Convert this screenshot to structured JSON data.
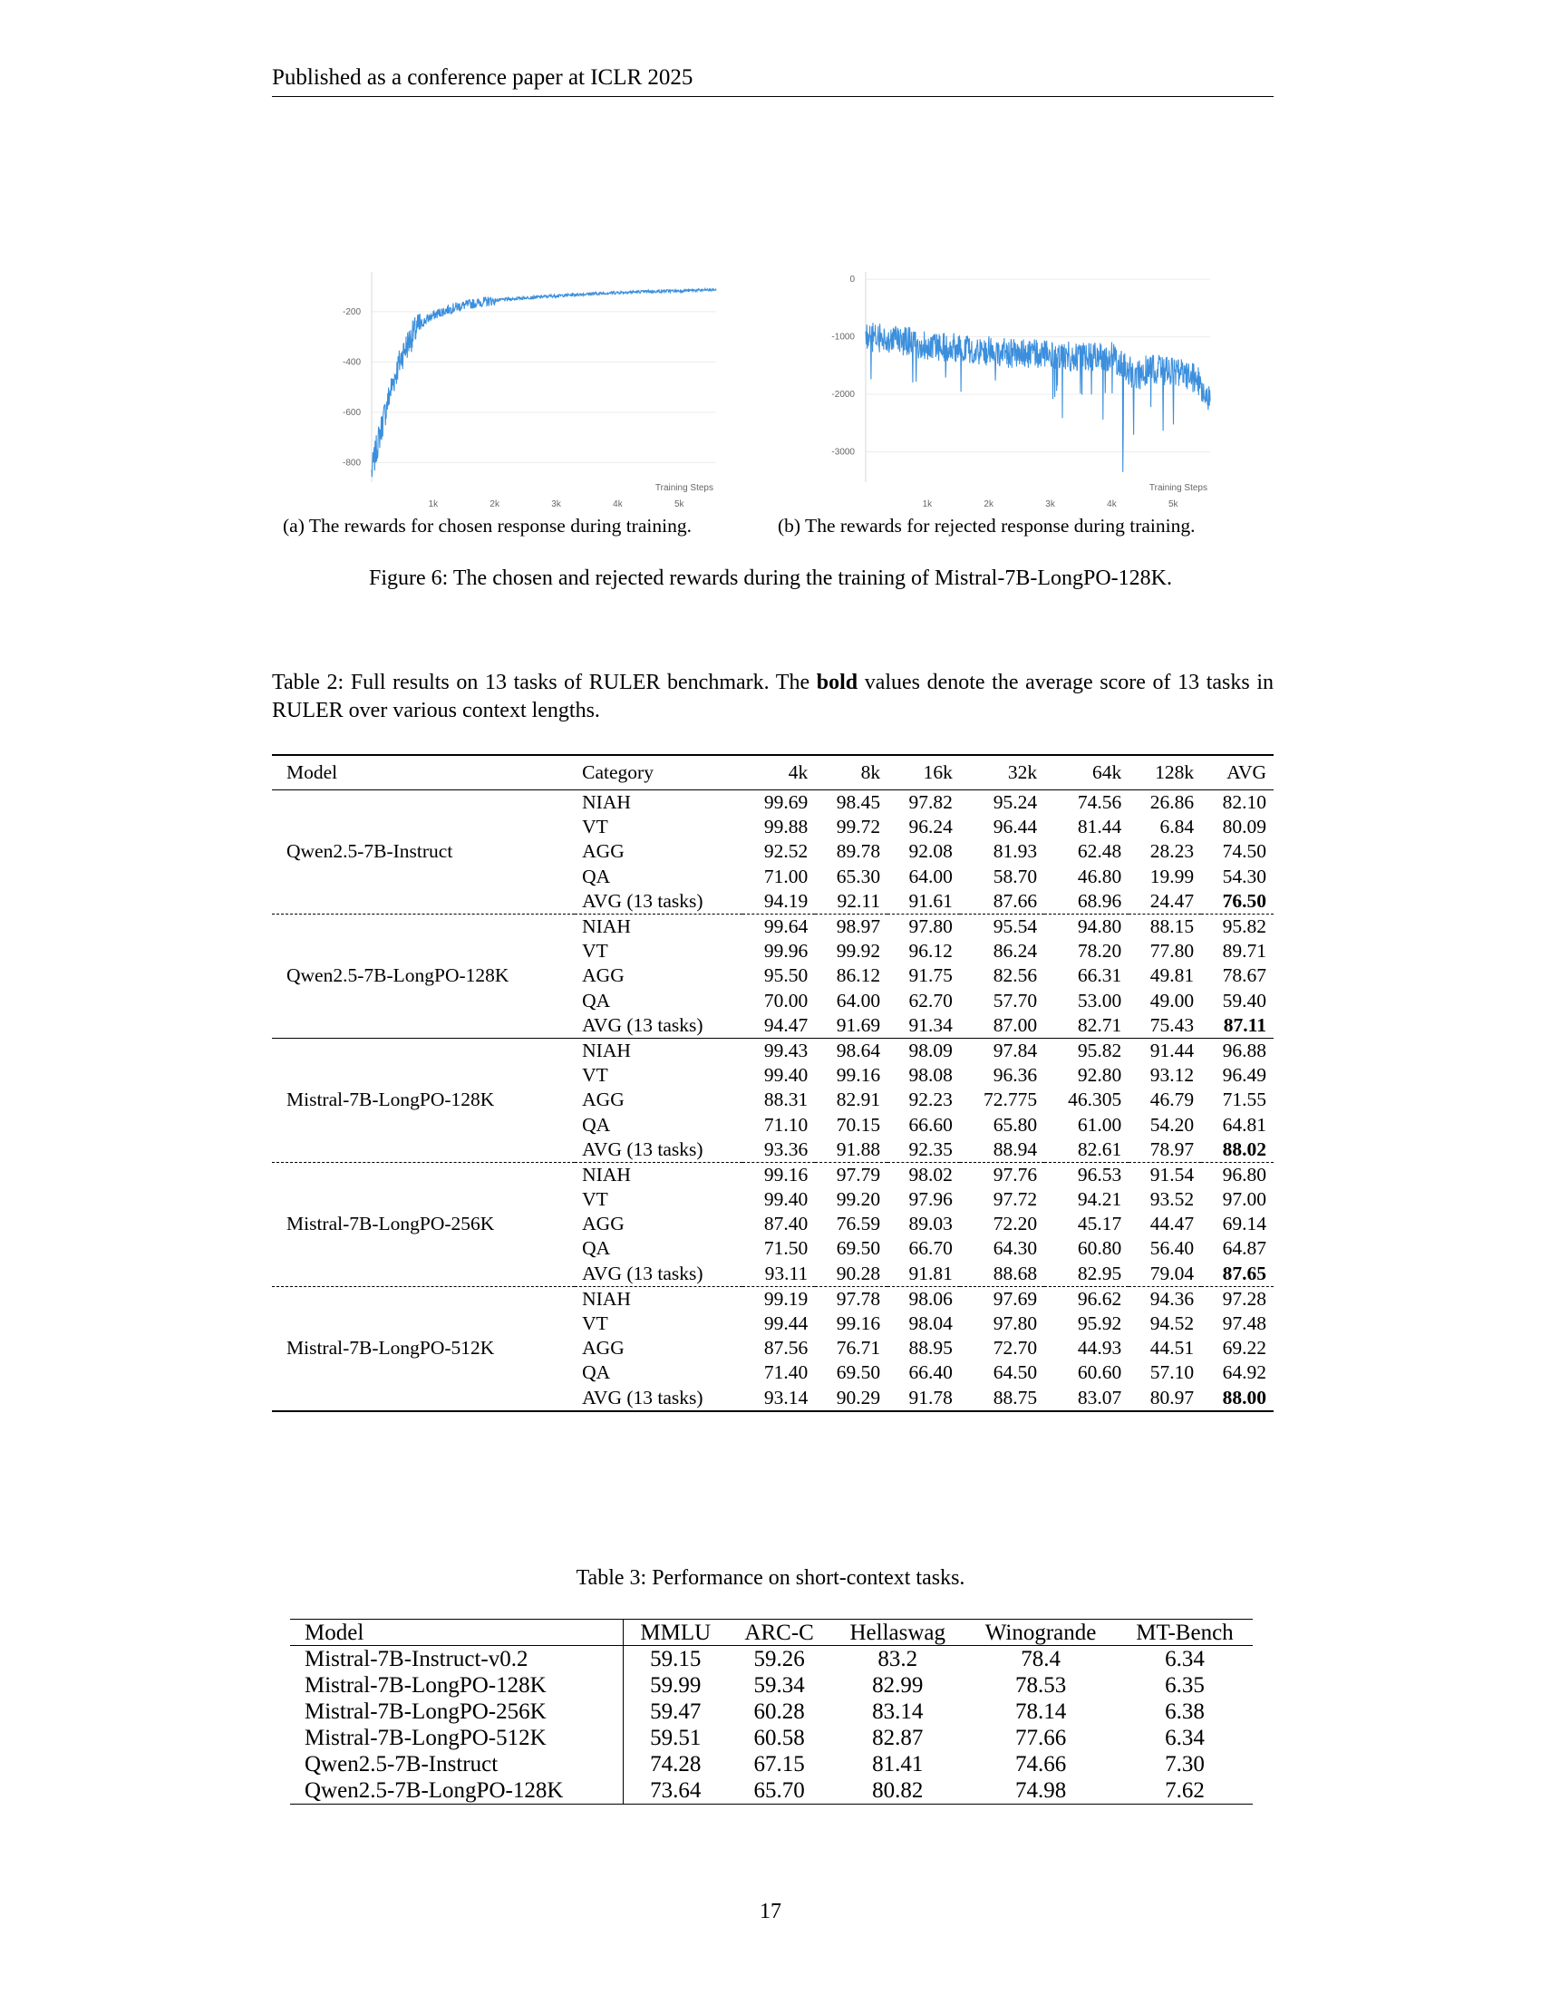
{
  "header": "Published as a conference paper at ICLR 2025",
  "figure": {
    "caption": "Figure 6: The chosen and rejected rewards during the training of Mistral-7B-LongPO-128K.",
    "subcaption_a": "(a) The rewards for chosen response during training.",
    "subcaption_b": "(b) The rewards for rejected response during training."
  },
  "chart_data": [
    {
      "type": "line",
      "xlabel": "Training Steps",
      "xticks": [
        "1k",
        "2k",
        "3k",
        "4k",
        "5k"
      ],
      "yticks": [
        -200,
        -400,
        -600,
        -800
      ],
      "xlim": [
        0,
        5600
      ],
      "ylim": [
        -860,
        -60
      ],
      "color": "#3b8fdd",
      "series": [
        {
          "x": [
            0,
            100,
            200,
            300,
            400,
            500,
            600,
            700,
            800,
            900,
            1000,
            1200,
            1400,
            1600,
            1800,
            2000,
            2500,
            3000,
            3500,
            4000,
            4500,
            5000,
            5600
          ],
          "values": [
            -840,
            -720,
            -620,
            -520,
            -440,
            -370,
            -320,
            -280,
            -250,
            -230,
            -215,
            -195,
            -180,
            -170,
            -162,
            -155,
            -145,
            -137,
            -130,
            -124,
            -120,
            -117,
            -113
          ]
        }
      ]
    },
    {
      "type": "line",
      "xlabel": "Training Steps",
      "xticks": [
        "1k",
        "2k",
        "3k",
        "4k",
        "5k"
      ],
      "yticks": [
        0,
        -1000,
        -2000,
        -3000
      ],
      "xlim": [
        0,
        5600
      ],
      "ylim": [
        -3450,
        50
      ],
      "color": "#3b8fdd",
      "series": [
        {
          "x": [
            0,
            500,
            1000,
            1500,
            2000,
            2500,
            3000,
            3500,
            4000,
            4200,
            4400,
            4600,
            5000,
            5400,
            5600
          ],
          "values": [
            -1000,
            -1050,
            -1150,
            -1200,
            -1250,
            -1300,
            -1300,
            -1350,
            -1350,
            -1500,
            -1700,
            -1550,
            -1600,
            -1750,
            -2100
          ]
        }
      ],
      "outliers": [
        {
          "x": 4180,
          "y": -3350
        }
      ]
    }
  ],
  "table2": {
    "caption_pre": "Table 2: Full results on 13 tasks of RULER benchmark. The ",
    "caption_bold": "bold",
    "caption_post": " values denote the average score of 13 tasks in RULER over various context lengths.",
    "columns": [
      "Model",
      "Category",
      "4k",
      "8k",
      "16k",
      "32k",
      "64k",
      "128k",
      "AVG"
    ],
    "groups": [
      {
        "model": "Qwen2.5-7B-Instruct",
        "rows": [
          [
            "NIAH",
            "99.69",
            "98.45",
            "97.82",
            "95.24",
            "74.56",
            "26.86",
            "82.10"
          ],
          [
            "VT",
            "99.88",
            "99.72",
            "96.24",
            "96.44",
            "81.44",
            "6.84",
            "80.09"
          ],
          [
            "AGG",
            "92.52",
            "89.78",
            "92.08",
            "81.93",
            "62.48",
            "28.23",
            "74.50"
          ],
          [
            "QA",
            "71.00",
            "65.30",
            "64.00",
            "58.70",
            "46.80",
            "19.99",
            "54.30"
          ],
          [
            "AVG (13 tasks)",
            "94.19",
            "92.11",
            "91.61",
            "87.66",
            "68.96",
            "24.47",
            "76.50"
          ]
        ]
      },
      {
        "model": "Qwen2.5-7B-LongPO-128K",
        "rows": [
          [
            "NIAH",
            "99.64",
            "98.97",
            "97.80",
            "95.54",
            "94.80",
            "88.15",
            "95.82"
          ],
          [
            "VT",
            "99.96",
            "99.92",
            "96.12",
            "86.24",
            "78.20",
            "77.80",
            "89.71"
          ],
          [
            "AGG",
            "95.50",
            "86.12",
            "91.75",
            "82.56",
            "66.31",
            "49.81",
            "78.67"
          ],
          [
            "QA",
            "70.00",
            "64.00",
            "62.70",
            "57.70",
            "53.00",
            "49.00",
            "59.40"
          ],
          [
            "AVG (13 tasks)",
            "94.47",
            "91.69",
            "91.34",
            "87.00",
            "82.71",
            "75.43",
            "87.11"
          ]
        ]
      },
      {
        "model": "Mistral-7B-LongPO-128K",
        "rows": [
          [
            "NIAH",
            "99.43",
            "98.64",
            "98.09",
            "97.84",
            "95.82",
            "91.44",
            "96.88"
          ],
          [
            "VT",
            "99.40",
            "99.16",
            "98.08",
            "96.36",
            "92.80",
            "93.12",
            "96.49"
          ],
          [
            "AGG",
            "88.31",
            "82.91",
            "92.23",
            "72.775",
            "46.305",
            "46.79",
            "71.55"
          ],
          [
            "QA",
            "71.10",
            "70.15",
            "66.60",
            "65.80",
            "61.00",
            "54.20",
            "64.81"
          ],
          [
            "AVG (13 tasks)",
            "93.36",
            "91.88",
            "92.35",
            "88.94",
            "82.61",
            "78.97",
            "88.02"
          ]
        ]
      },
      {
        "model": "Mistral-7B-LongPO-256K",
        "rows": [
          [
            "NIAH",
            "99.16",
            "97.79",
            "98.02",
            "97.76",
            "96.53",
            "91.54",
            "96.80"
          ],
          [
            "VT",
            "99.40",
            "99.20",
            "97.96",
            "97.72",
            "94.21",
            "93.52",
            "97.00"
          ],
          [
            "AGG",
            "87.40",
            "76.59",
            "89.03",
            "72.20",
            "45.17",
            "44.47",
            "69.14"
          ],
          [
            "QA",
            "71.50",
            "69.50",
            "66.70",
            "64.30",
            "60.80",
            "56.40",
            "64.87"
          ],
          [
            "AVG (13 tasks)",
            "93.11",
            "90.28",
            "91.81",
            "88.68",
            "82.95",
            "79.04",
            "87.65"
          ]
        ]
      },
      {
        "model": "Mistral-7B-LongPO-512K",
        "rows": [
          [
            "NIAH",
            "99.19",
            "97.78",
            "98.06",
            "97.69",
            "96.62",
            "94.36",
            "97.28"
          ],
          [
            "VT",
            "99.44",
            "99.16",
            "98.04",
            "97.80",
            "95.92",
            "94.52",
            "97.48"
          ],
          [
            "AGG",
            "87.56",
            "76.71",
            "88.95",
            "72.70",
            "44.93",
            "44.51",
            "69.22"
          ],
          [
            "QA",
            "71.40",
            "69.50",
            "66.40",
            "64.50",
            "60.60",
            "57.10",
            "64.92"
          ],
          [
            "AVG (13 tasks)",
            "93.14",
            "90.29",
            "91.78",
            "88.75",
            "83.07",
            "80.97",
            "88.00"
          ]
        ]
      }
    ],
    "separators": [
      "dashed",
      "solid",
      "dashed",
      "dashed"
    ]
  },
  "table3": {
    "caption": "Table 3: Performance on short-context tasks.",
    "columns": [
      "Model",
      "MMLU",
      "ARC-C",
      "Hellaswag",
      "Winogrande",
      "MT-Bench"
    ],
    "rows": [
      [
        "Mistral-7B-Instruct-v0.2",
        "59.15",
        "59.26",
        "83.2",
        "78.4",
        "6.34"
      ],
      [
        "Mistral-7B-LongPO-128K",
        "59.99",
        "59.34",
        "82.99",
        "78.53",
        "6.35"
      ],
      [
        "Mistral-7B-LongPO-256K",
        "59.47",
        "60.28",
        "83.14",
        "78.14",
        "6.38"
      ],
      [
        "Mistral-7B-LongPO-512K",
        "59.51",
        "60.58",
        "82.87",
        "77.66",
        "6.34"
      ],
      [
        "Qwen2.5-7B-Instruct",
        "74.28",
        "67.15",
        "81.41",
        "74.66",
        "7.30"
      ],
      [
        "Qwen2.5-7B-LongPO-128K",
        "73.64",
        "65.70",
        "80.82",
        "74.98",
        "7.62"
      ]
    ]
  },
  "page_number": "17"
}
